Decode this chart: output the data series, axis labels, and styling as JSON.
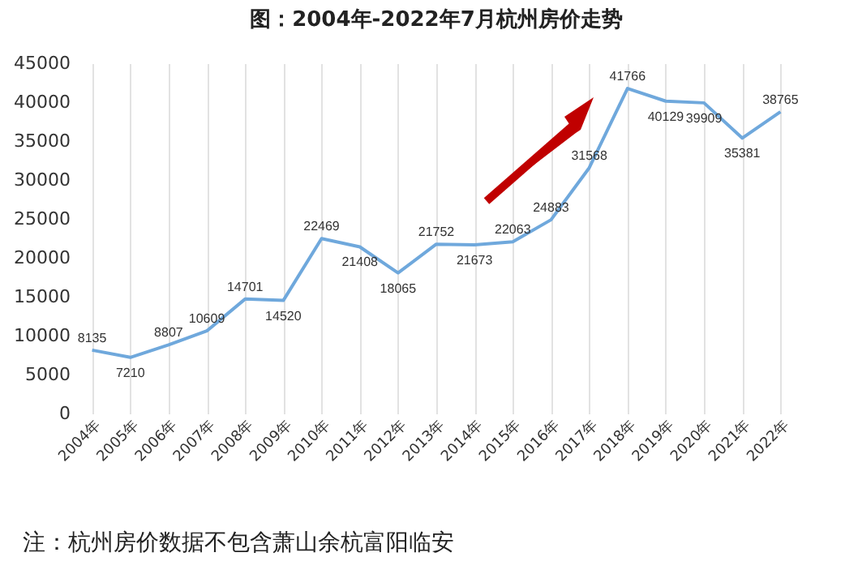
{
  "chart_data": {
    "type": "line",
    "title": "图：2004年-2022年7月杭州房价走势",
    "categories": [
      "2004年",
      "2005年",
      "2006年",
      "2007年",
      "2008年",
      "2009年",
      "2010年",
      "2011年",
      "2012年",
      "2013年",
      "2014年",
      "2015年",
      "2016年",
      "2017年",
      "2018年",
      "2019年",
      "2020年",
      "2021年",
      "2022年"
    ],
    "series": [
      {
        "color": "#6fa8dc",
        "values": [
          8135,
          7210,
          8807,
          10609,
          14701,
          14520,
          22469,
          21408,
          18065,
          21752,
          21673,
          22063,
          24883,
          31568,
          41766,
          40129,
          39909,
          35381,
          38765
        ]
      }
    ],
    "ylim": [
      0,
      45000
    ],
    "yticks": [
      0,
      5000,
      10000,
      15000,
      20000,
      25000,
      30000,
      35000,
      40000,
      45000
    ],
    "grid": "x",
    "data_labels": true,
    "marker": "none",
    "line_style": "solid",
    "annotations": [
      "注：杭州房价数据不包含萧山余杭富阳临安"
    ]
  }
}
